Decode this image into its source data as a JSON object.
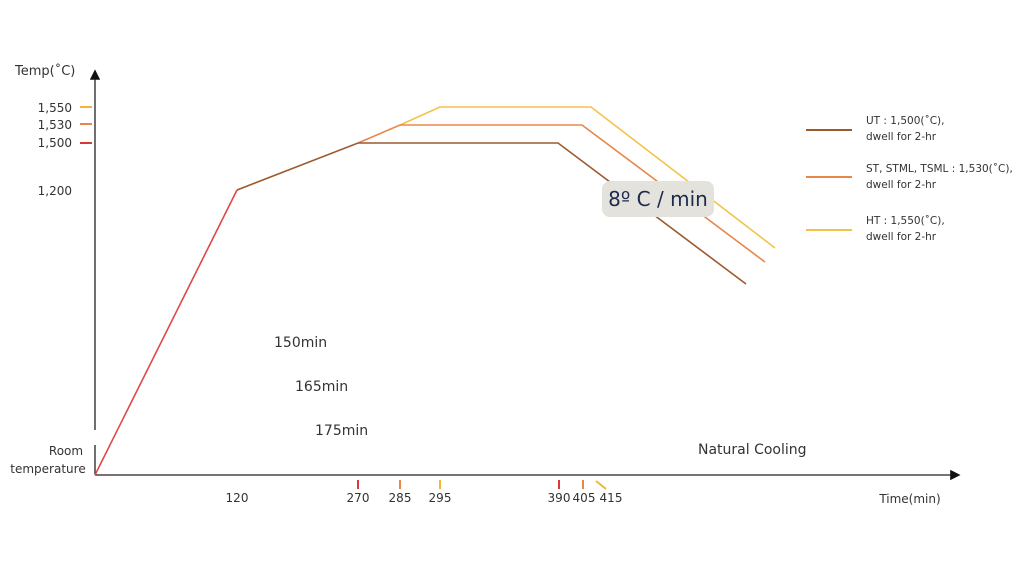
{
  "axes": {
    "y_title": "Temp(˚C)",
    "x_title": "Time(min)",
    "y_labels": [
      "1,550",
      "1,530",
      "1,500",
      "1,200"
    ],
    "room": [
      "Room",
      "temperature"
    ],
    "x_labels": [
      "120",
      "270",
      "285",
      "295",
      "390",
      "405",
      "415"
    ]
  },
  "annotations": {
    "durations": [
      "150min",
      "165min",
      "175min"
    ],
    "cooling": "Natural Cooling",
    "rate": "8º C / min"
  },
  "legend": [
    {
      "lines": [
        "UT : 1,500(˚C),",
        "dwell for 2-hr"
      ]
    },
    {
      "lines": [
        "ST, STML, TSML : 1,530(˚C),",
        "dwell for 2-hr"
      ]
    },
    {
      "lines": [
        "HT : 1,550(˚C),",
        "dwell for 2-hr"
      ]
    }
  ]
}
